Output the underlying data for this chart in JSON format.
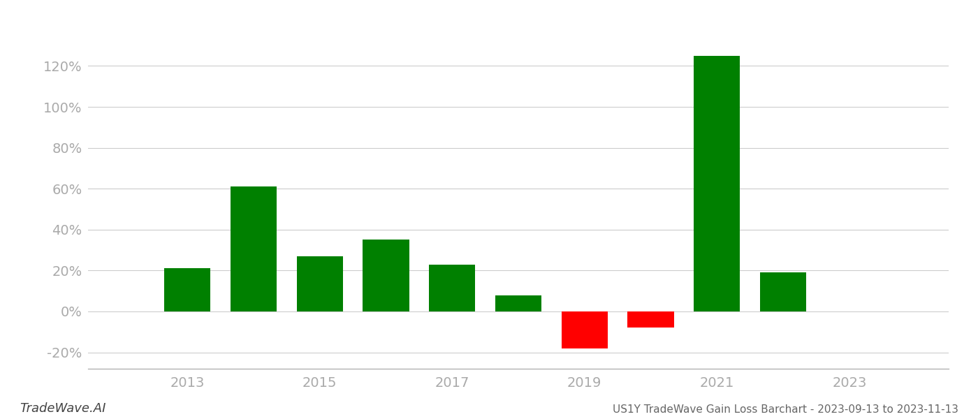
{
  "years": [
    2013,
    2014,
    2015,
    2016,
    2017,
    2018,
    2019,
    2020,
    2021,
    2022,
    2023
  ],
  "values": [
    0.21,
    0.61,
    0.27,
    0.35,
    0.23,
    0.08,
    -0.18,
    -0.08,
    1.25,
    0.19,
    null
  ],
  "bar_colors_positive": "#008000",
  "bar_colors_negative": "#ff0000",
  "background_color": "#ffffff",
  "grid_color": "#cccccc",
  "axis_color": "#aaaaaa",
  "tick_color": "#aaaaaa",
  "ylim": [
    -0.28,
    1.42
  ],
  "yticks": [
    -0.2,
    0.0,
    0.2,
    0.4,
    0.6,
    0.8,
    1.0,
    1.2
  ],
  "footer_left": "TradeWave.AI",
  "footer_right": "US1Y TradeWave Gain Loss Barchart - 2023-09-13 to 2023-11-13",
  "bar_width": 0.7,
  "xticks": [
    2013,
    2015,
    2017,
    2019,
    2021,
    2023
  ],
  "xlim": [
    2011.5,
    2024.5
  ]
}
